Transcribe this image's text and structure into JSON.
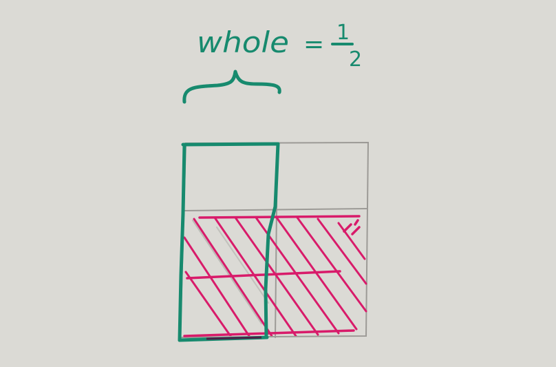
{
  "annotation": {
    "text": "whole",
    "equals": "=",
    "fraction_numerator": "1",
    "fraction_denominator": "2"
  },
  "grid": {
    "columns": 2,
    "rows": 2,
    "whole_columns_outlined": 1,
    "shaded_fraction_of_square": 0.5
  },
  "colors": {
    "paper": "#d6d4cf",
    "pencil": "#9c9a96",
    "green_marker": "#178a6e",
    "pink_marker": "#d81b6a",
    "overlap_dark": "#4b2247"
  }
}
